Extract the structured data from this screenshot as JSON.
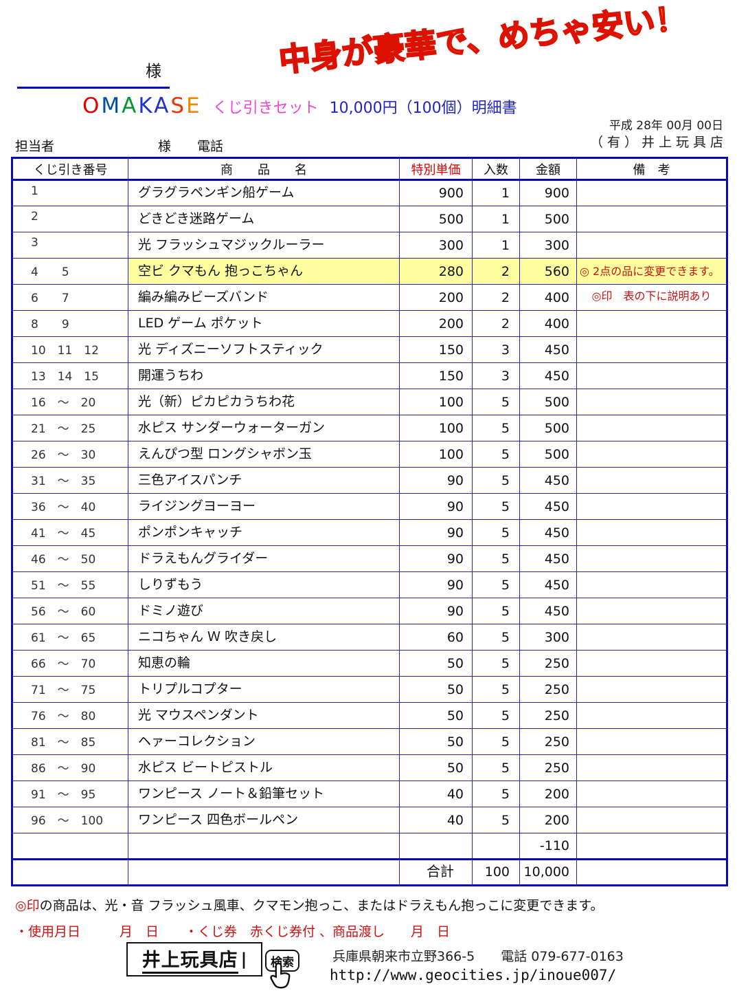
{
  "banner": {
    "text": "中身が豪華で、めちゃ安い！"
  },
  "header": {
    "customer_suffix": "様",
    "brand_letters": [
      {
        "ch": "O",
        "color": "#e00000"
      },
      {
        "ch": "M",
        "color": "#0050a0"
      },
      {
        "ch": "A",
        "color": "#009933"
      },
      {
        "ch": "K",
        "color": "#2233cc"
      },
      {
        "ch": "A",
        "color": "#2233cc"
      },
      {
        "ch": "S",
        "color": "#ee3300"
      },
      {
        "ch": "E",
        "color": "#ee8800"
      }
    ],
    "set_label": "くじ引きセット",
    "set_detail": "10,000円（100個）明細書",
    "date": "平成 28年 00月 00日",
    "company": "（有）井上玩具店",
    "staff_label": "担当者",
    "staff_suffix": "様",
    "tel_label": "電話"
  },
  "table": {
    "headers": [
      "くじ引き番号",
      "商　　品　　名",
      "特別単価",
      "入数",
      "金額",
      "備　考"
    ],
    "rows": [
      {
        "no": "1",
        "name": "グラグラペンギン船ゲーム",
        "price": "900",
        "qty": "1",
        "amount": "900",
        "remark": "",
        "hl": false,
        "remark_top": false
      },
      {
        "no": "2",
        "name": "どきどき迷路ゲーム",
        "price": "500",
        "qty": "1",
        "amount": "500",
        "remark": "",
        "hl": false,
        "remark_top": false
      },
      {
        "no": "3",
        "name": "光 フラッシュマジックルーラー",
        "price": "300",
        "qty": "1",
        "amount": "300",
        "remark": "",
        "hl": false,
        "remark_top": false
      },
      {
        "no": "4　　5",
        "name": "空ビ クマもん 抱っこちゃん",
        "price": "280",
        "qty": "2",
        "amount": "560",
        "remark": "◎ 2点の品に変更できます。",
        "hl": true,
        "remark_top": false
      },
      {
        "no": "6　　7",
        "name": "編み編みビーズバンド",
        "price": "200",
        "qty": "2",
        "amount": "400",
        "remark": "◎印　表の下に説明あり",
        "hl": false,
        "remark_top": true
      },
      {
        "no": "8　　9",
        "name": "LED ゲーム ポケット",
        "price": "200",
        "qty": "2",
        "amount": "400",
        "remark": "",
        "hl": false,
        "remark_top": false
      },
      {
        "no": "10　11　12",
        "name": "光 ディズニーソフトスティック",
        "price": "150",
        "qty": "3",
        "amount": "450",
        "remark": "",
        "hl": false,
        "remark_top": false
      },
      {
        "no": "13　14　15",
        "name": "開運うちわ",
        "price": "150",
        "qty": "3",
        "amount": "450",
        "remark": "",
        "hl": false,
        "remark_top": false
      },
      {
        "no": "16　～　20",
        "name": "光（新）ピカピカうちわ花",
        "price": "100",
        "qty": "5",
        "amount": "500",
        "remark": "",
        "hl": false,
        "remark_top": false
      },
      {
        "no": "21　～　25",
        "name": "水ピス サンダーウォーターガン",
        "price": "100",
        "qty": "5",
        "amount": "500",
        "remark": "",
        "hl": false,
        "remark_top": false
      },
      {
        "no": "26　～　30",
        "name": "えんぴつ型 ロングシャボン玉",
        "price": "100",
        "qty": "5",
        "amount": "500",
        "remark": "",
        "hl": false,
        "remark_top": false
      },
      {
        "no": "31　～　35",
        "name": "三色アイスパンチ",
        "price": "90",
        "qty": "5",
        "amount": "450",
        "remark": "",
        "hl": false,
        "remark_top": false
      },
      {
        "no": "36　～　40",
        "name": "ライジングヨーヨー",
        "price": "90",
        "qty": "5",
        "amount": "450",
        "remark": "",
        "hl": false,
        "remark_top": false
      },
      {
        "no": "41　～　45",
        "name": "ポンポンキャッチ",
        "price": "90",
        "qty": "5",
        "amount": "450",
        "remark": "",
        "hl": false,
        "remark_top": false
      },
      {
        "no": "46　～　50",
        "name": "ドラえもんグライダー",
        "price": "90",
        "qty": "5",
        "amount": "450",
        "remark": "",
        "hl": false,
        "remark_top": false
      },
      {
        "no": "51　～　55",
        "name": "しりずもう",
        "price": "90",
        "qty": "5",
        "amount": "450",
        "remark": "",
        "hl": false,
        "remark_top": false
      },
      {
        "no": "56　～　60",
        "name": "ドミノ遊び",
        "price": "90",
        "qty": "5",
        "amount": "450",
        "remark": "",
        "hl": false,
        "remark_top": false
      },
      {
        "no": "61　～　65",
        "name": "ニコちゃん Ｗ 吹き戻し",
        "price": "60",
        "qty": "5",
        "amount": "300",
        "remark": "",
        "hl": false,
        "remark_top": false
      },
      {
        "no": "66　～　70",
        "name": "知恵の輪",
        "price": "50",
        "qty": "5",
        "amount": "250",
        "remark": "",
        "hl": false,
        "remark_top": false
      },
      {
        "no": "71　～　75",
        "name": "トリプルコプター",
        "price": "50",
        "qty": "5",
        "amount": "250",
        "remark": "",
        "hl": false,
        "remark_top": false
      },
      {
        "no": "76　～　80",
        "name": "光 マウスペンダント",
        "price": "50",
        "qty": "5",
        "amount": "250",
        "remark": "",
        "hl": false,
        "remark_top": false
      },
      {
        "no": "81　～　85",
        "name": "ヘァーコレクション",
        "price": "50",
        "qty": "5",
        "amount": "250",
        "remark": "",
        "hl": false,
        "remark_top": false
      },
      {
        "no": "86　～　90",
        "name": "水ピス ビートピストル",
        "price": "50",
        "qty": "5",
        "amount": "250",
        "remark": "",
        "hl": false,
        "remark_top": false
      },
      {
        "no": "91　～　95",
        "name": "ワンピース ノート＆鉛筆セット",
        "price": "40",
        "qty": "5",
        "amount": "200",
        "remark": "",
        "hl": false,
        "remark_top": false
      },
      {
        "no": "96　～　100",
        "name": "ワンピース 四色ボールペン",
        "price": "40",
        "qty": "5",
        "amount": "200",
        "remark": "",
        "hl": false,
        "remark_top": false
      }
    ],
    "minus_row": {
      "amount": "-110"
    },
    "total_row": {
      "label": "合計",
      "qty": "100",
      "amount": "10,000"
    }
  },
  "notes": {
    "note1_prefix": "◎印",
    "note1_rest": "の商品は、光・音 フラッシュ風車、クマモン抱っこ、またはドラえもん抱っこに変更できます。",
    "note2": "・使用月日　　　月　日　　・くじ券　赤くじ券付 、商品渡し　　月　日"
  },
  "footer": {
    "store_name": "井上玩具店",
    "cursor": "|",
    "search_label": "検索",
    "address": "兵庫県朝来市立野366-5　　電話 079-677-0163",
    "url": "http://www.geocities.jp/inoue007/"
  }
}
